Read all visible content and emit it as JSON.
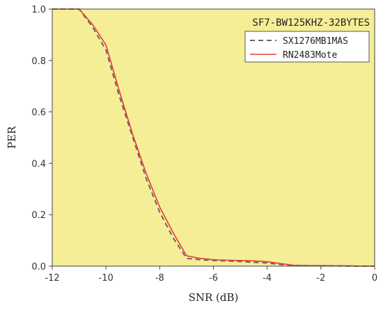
{
  "chart_data": {
    "type": "line",
    "title": "SF7-BW125KHZ-32BYTES",
    "xlabel": "SNR (dB)",
    "ylabel": "PER",
    "xlim": [
      -12,
      0
    ],
    "ylim": [
      0,
      1.0
    ],
    "xticks": [
      "-12",
      "-10",
      "-8",
      "-6",
      "-4",
      "-2",
      "0"
    ],
    "yticks": [
      "0.0",
      "0.2",
      "0.4",
      "0.6",
      "0.8",
      "1.0"
    ],
    "grid": false,
    "legend_position": "top-right",
    "background_color": "#f5ee96",
    "series": [
      {
        "name": "SX1276MB1MAS",
        "style": "dashed",
        "color": "#666666",
        "x": [
          -12,
          -11,
          -10.5,
          -10,
          -9.5,
          -9,
          -8.5,
          -8,
          -7.5,
          -7,
          -6.5,
          -6,
          -5.5,
          -5,
          -4.5,
          -4,
          -3.5,
          -3,
          -2.5,
          -2,
          -1.5,
          -1,
          -0.5,
          0
        ],
        "y": [
          1.0,
          1.0,
          0.93,
          0.84,
          0.66,
          0.5,
          0.34,
          0.21,
          0.11,
          0.03,
          0.025,
          0.022,
          0.02,
          0.018,
          0.015,
          0.012,
          0.006,
          0.003,
          0.002,
          0.001,
          0.001,
          0.0,
          0.0,
          0.0
        ]
      },
      {
        "name": "RN2483Mote",
        "style": "solid",
        "color": "#e8393b",
        "x": [
          -12,
          -11,
          -10.5,
          -10,
          -9.5,
          -9,
          -8.5,
          -8,
          -7.5,
          -7,
          -6.5,
          -6,
          -5.5,
          -5,
          -4.5,
          -4,
          -3.5,
          -3,
          -2.5,
          -2,
          -1.5,
          -1,
          -0.5,
          0
        ],
        "y": [
          1.0,
          1.0,
          0.94,
          0.86,
          0.68,
          0.51,
          0.36,
          0.23,
          0.13,
          0.04,
          0.03,
          0.025,
          0.023,
          0.022,
          0.02,
          0.017,
          0.01,
          0.003,
          0.002,
          0.002,
          0.001,
          0.001,
          0.0,
          0.0
        ]
      }
    ]
  }
}
